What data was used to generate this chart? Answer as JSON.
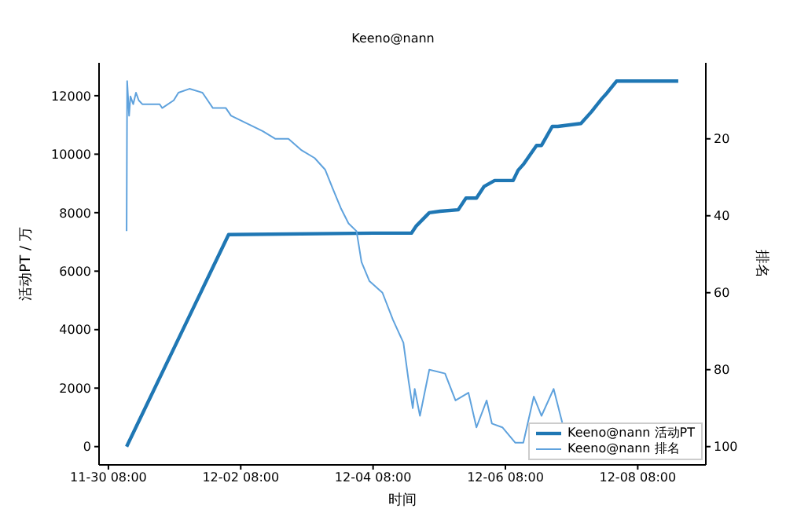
{
  "chart_data": {
    "type": "line",
    "title": "Keeno@nann",
    "xlabel": "时间",
    "ylabel": "活动PT / 万",
    "y2label": "排名",
    "xlim": [
      "--11-30T04:36",
      "--12-09T08:42"
    ],
    "xticks": [
      {
        "value": "--11-30T08:00",
        "label": "11-30 08:00"
      },
      {
        "value": "--12-02T08:00",
        "label": "12-02 08:00"
      },
      {
        "value": "--12-04T08:00",
        "label": "12-04 08:00"
      },
      {
        "value": "--12-06T08:00",
        "label": "12-06 08:00"
      },
      {
        "value": "--12-08T08:00",
        "label": "12-08 08:00"
      }
    ],
    "ylim": [
      -625,
      13125
    ],
    "yticks": [
      0,
      2000,
      4000,
      6000,
      8000,
      10000,
      12000
    ],
    "y2lim": [
      104.75,
      0.25
    ],
    "y2ticks": [
      20,
      40,
      60,
      80,
      100
    ],
    "legend": "bottom right",
    "marker": "none",
    "line_style": "solid",
    "series": [
      {
        "name": "Keeno@nann 活动PT",
        "color": "#1f77b4",
        "x": [
          "--11-30T14:36",
          "--12-02T03:36",
          "--12-04T08:00",
          "--12-04T21:54",
          "--12-04T23:42",
          "--12-05T04:24",
          "--12-05T08:18",
          "--12-05T14:54",
          "--12-05T17:42",
          "--12-05T21:30",
          "--12-06T00:18",
          "--12-06T04:06",
          "--12-06T10:48",
          "--12-06T12:36",
          "--12-06T14:30",
          "--12-06T19:18",
          "--12-06T21:06",
          "--12-07T01:00",
          "--12-07T03:00",
          "--12-07T11:24",
          "--12-07T15:12",
          "--12-07T19:00",
          "--12-07T20:54",
          "--12-08T00:18",
          "--12-08T22:42"
        ],
        "values": [
          0,
          7250,
          7300,
          7300,
          7550,
          8000,
          8050,
          8100,
          8500,
          8500,
          8900,
          9100,
          9100,
          9450,
          9650,
          10300,
          10300,
          10950,
          10950,
          11050,
          11450,
          11900,
          12100,
          12500,
          12500
        ]
      },
      {
        "name": "Keeno@nann 排名",
        "color": "#5fa2dd",
        "axis": "y2",
        "x": [
          "--11-30T14:36",
          "--11-30T14:48",
          "--11-30T15:30",
          "--11-30T16:00",
          "--11-30T17:00",
          "--11-30T18:00",
          "--11-30T19:00",
          "--11-30T20:18",
          "--12-01T02:36",
          "--12-01T03:30",
          "--12-01T07:42",
          "--12-01T09:24",
          "--12-01T13:24",
          "--12-01T18:06",
          "--12-01T20:00",
          "--12-01T21:54",
          "--12-02T02:36",
          "--12-02T04:30",
          "--12-02T10:12",
          "--12-02T15:54",
          "--12-02T20:36",
          "--12-03T01:18",
          "--12-03T06:06",
          "--12-03T10:48",
          "--12-03T14:36",
          "--12-03T17:24",
          "--12-03T20:18",
          "--12-03T23:06",
          "--12-04T02:00",
          "--12-04T03:48",
          "--12-04T06:42",
          "--12-04T11:24",
          "--12-04T15:12",
          "--12-04T19:00",
          "--12-04T20:54",
          "--12-04T22:24",
          "--12-04T23:06",
          "--12-05T01:00",
          "--12-05T04:24",
          "--12-05T10:06",
          "--12-05T13:54",
          "--12-05T18:36",
          "--12-05T21:30",
          "--12-06T01:12",
          "--12-06T03:06",
          "--12-06T06:54",
          "--12-06T11:36",
          "--12-06T14:30",
          "--12-06T18:18",
          "--12-06T21:06",
          "--12-07T01:30",
          "--12-07T04:42"
        ],
        "values": [
          44,
          5,
          14,
          9,
          11,
          8,
          10,
          11,
          11,
          12,
          10,
          8,
          7,
          8,
          10,
          12,
          12,
          14,
          16,
          18,
          20,
          20,
          23,
          25,
          28,
          33,
          38,
          42,
          44,
          52,
          57,
          60,
          67,
          73,
          83,
          90,
          85,
          92,
          80,
          81,
          88,
          86,
          95,
          88,
          94,
          95,
          99,
          99,
          87,
          92,
          85,
          94
        ]
      }
    ]
  }
}
